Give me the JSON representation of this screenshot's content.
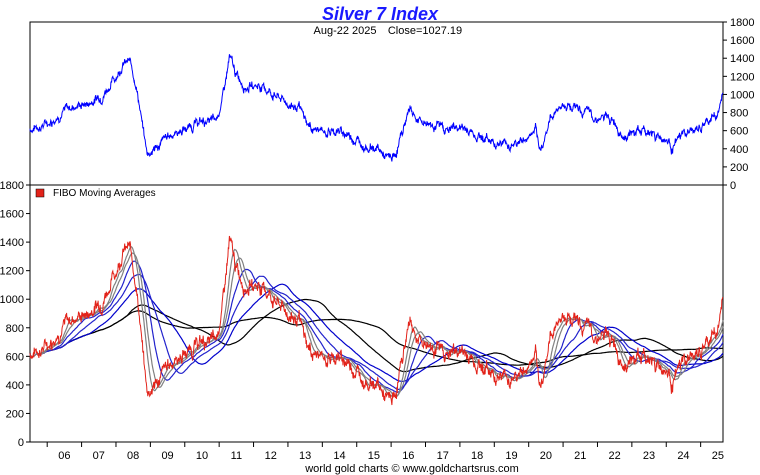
{
  "chart_data": [
    {
      "type": "line",
      "title": "Silver 7 Index",
      "subtitle_date": "Aug-22  2025",
      "subtitle_close": "Close=1027.19",
      "ylim": [
        0,
        1800
      ],
      "y_ticks": [
        0,
        200,
        400,
        600,
        800,
        1000,
        1200,
        1400,
        1600,
        1800
      ],
      "y_axis_side": "right",
      "series_color": "#0000ff",
      "x_range": [
        2005.5,
        2025.65
      ],
      "series": [
        {
          "x": [
            2005.5,
            2006.0,
            2006.4,
            2006.8,
            2007.2,
            2007.6,
            2008.0,
            2008.2,
            2008.4,
            2008.6,
            2008.75,
            2008.9,
            2009.2,
            2009.6,
            2010.0,
            2010.5,
            2010.9,
            2011.1,
            2011.3,
            2011.5,
            2011.8,
            2012.2,
            2012.6,
            2013.0,
            2013.3,
            2013.6,
            2014.0,
            2014.4,
            2014.8,
            2015.2,
            2015.6,
            2015.9,
            2016.1,
            2016.3,
            2016.55,
            2016.8,
            2017.2,
            2017.6,
            2018.0,
            2018.5,
            2019.0,
            2019.5,
            2019.9,
            2020.2,
            2020.3,
            2020.6,
            2020.8,
            2021.2,
            2021.6,
            2022.0,
            2022.5,
            2022.8,
            2023.2,
            2023.6,
            2024.0,
            2024.2,
            2024.5,
            2024.9,
            2025.2,
            2025.5,
            2025.65
          ],
          "y": [
            620,
            680,
            800,
            880,
            900,
            1000,
            1200,
            1350,
            1350,
            1100,
            700,
            350,
            420,
            560,
            620,
            700,
            700,
            950,
            1400,
            1200,
            1100,
            1100,
            1000,
            900,
            850,
            650,
            580,
            600,
            550,
            450,
            400,
            280,
            300,
            550,
            870,
            700,
            680,
            620,
            640,
            560,
            480,
            450,
            500,
            600,
            330,
            700,
            850,
            900,
            800,
            750,
            700,
            550,
            600,
            580,
            500,
            420,
            560,
            600,
            680,
            800,
            1000
          ]
        }
      ]
    },
    {
      "type": "line",
      "legend_label": "FIBO  Moving  Averages",
      "legend_color": "#e2231a",
      "ylim": [
        0,
        1800
      ],
      "y_ticks": [
        0,
        200,
        400,
        600,
        800,
        1000,
        1200,
        1400,
        1600,
        1800
      ],
      "y_axis_side": "left",
      "x_labels": [
        "06",
        "07",
        "08",
        "09",
        "10",
        "11",
        "12",
        "13",
        "14",
        "15",
        "16",
        "17",
        "18",
        "19",
        "20",
        "21",
        "22",
        "23",
        "24",
        "25"
      ],
      "x_range": [
        2005.5,
        2025.65
      ],
      "price_color": "#e2231a",
      "ma_colors": [
        "#808080",
        "#808080",
        "#2222cc",
        "#2222cc",
        "#0000cc",
        "#000000",
        "#000000"
      ],
      "ma_windows_months": [
        3,
        5,
        8,
        13,
        21,
        34,
        55
      ]
    }
  ],
  "footer": "world gold charts © www.goldchartsrus.com"
}
